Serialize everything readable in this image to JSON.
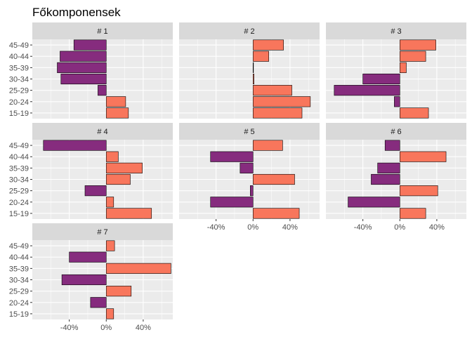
{
  "title": "Főkomponensek",
  "chart_data": {
    "type": "bar",
    "orientation": "horizontal",
    "title": "Főkomponensek",
    "xlabel": "",
    "ylabel": "",
    "categories": [
      "15-19",
      "20-24",
      "25-29",
      "30-34",
      "35-39",
      "40-44",
      "45-49"
    ],
    "xlim": [
      -0.8,
      0.72
    ],
    "x_ticks": [
      -0.4,
      0,
      0.4
    ],
    "x_tick_labels": [
      "-40%",
      "0%",
      "40%"
    ],
    "grid": true,
    "facet_layout": {
      "columns": 3,
      "rows": 3
    },
    "colors": {
      "positive": "#f8765c",
      "negative": "#862c7e",
      "panel_bg": "#ebebeb",
      "strip_bg": "#d9d9d9",
      "grid": "#ffffff",
      "bar_outline": "#000000"
    },
    "panels": [
      {
        "label": "# 1",
        "values": [
          0.24,
          0.21,
          -0.09,
          -0.49,
          -0.53,
          -0.5,
          -0.35
        ]
      },
      {
        "label": "# 2",
        "values": [
          0.53,
          0.62,
          0.42,
          0.01,
          0.0,
          0.17,
          0.33
        ]
      },
      {
        "label": "# 3",
        "values": [
          0.31,
          -0.06,
          -0.71,
          -0.4,
          0.07,
          0.28,
          0.39
        ]
      },
      {
        "label": "# 4",
        "values": [
          0.49,
          0.08,
          -0.23,
          0.26,
          0.39,
          0.13,
          -0.68
        ]
      },
      {
        "label": "# 5",
        "values": [
          0.5,
          -0.46,
          -0.03,
          0.45,
          -0.14,
          -0.46,
          0.32
        ]
      },
      {
        "label": "# 6",
        "values": [
          0.28,
          -0.56,
          0.41,
          -0.31,
          -0.24,
          0.5,
          -0.16
        ]
      },
      {
        "label": "# 7",
        "values": [
          0.08,
          -0.17,
          0.27,
          -0.48,
          0.7,
          -0.4,
          0.09
        ]
      }
    ]
  }
}
